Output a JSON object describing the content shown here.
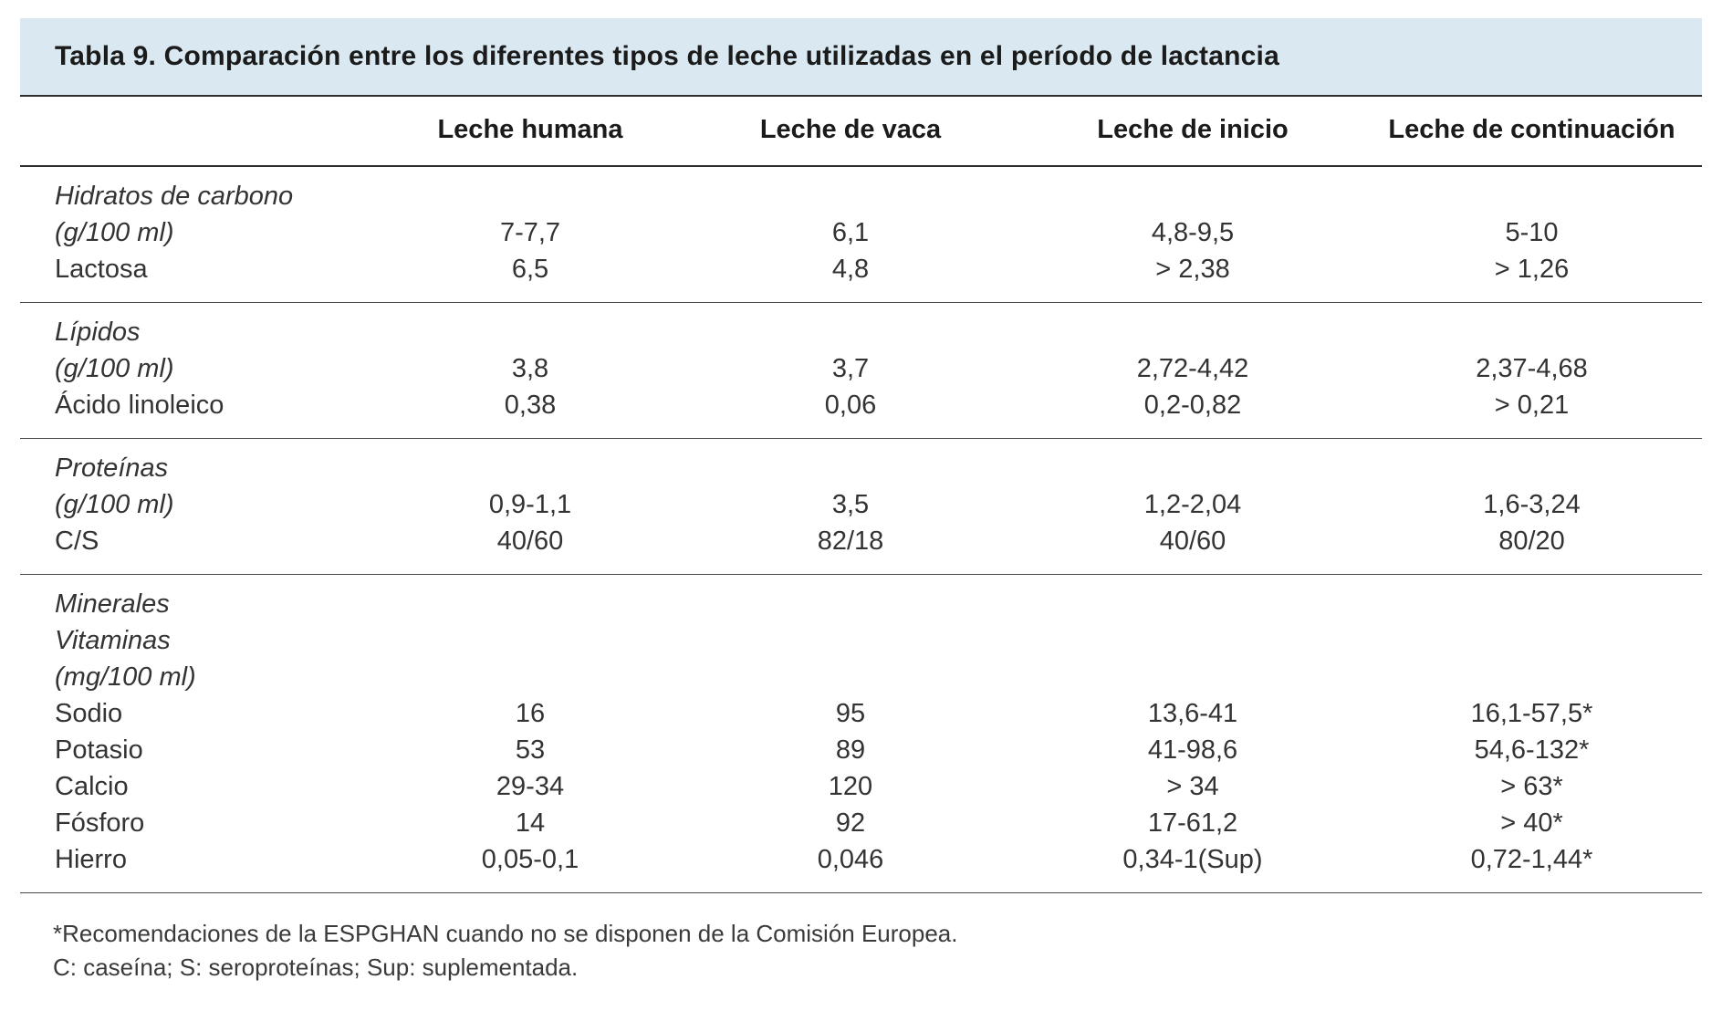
{
  "title": "Tabla 9. Comparación entre los diferentes tipos de leche utilizadas en el período de lactancia",
  "columns": [
    "Leche humana",
    "Leche de vaca",
    "Leche de inicio",
    "Leche de continuación"
  ],
  "sections": [
    {
      "name": "hidratos-de-carbono",
      "rows": [
        {
          "label": "Hidratos de carbono",
          "italic": true,
          "values": [
            "",
            "",
            "",
            ""
          ]
        },
        {
          "label": "(g/100 ml)",
          "italic": true,
          "values": [
            "7-7,7",
            "6,1",
            "4,8-9,5",
            "5-10"
          ]
        },
        {
          "label": "Lactosa",
          "italic": false,
          "values": [
            "6,5",
            "4,8",
            "> 2,38",
            "> 1,26"
          ]
        }
      ]
    },
    {
      "name": "lipidos",
      "rows": [
        {
          "label": "Lípidos",
          "italic": true,
          "values": [
            "",
            "",
            "",
            ""
          ]
        },
        {
          "label": "(g/100 ml)",
          "italic": true,
          "values": [
            "3,8",
            "3,7",
            "2,72-4,42",
            "2,37-4,68"
          ]
        },
        {
          "label": "Ácido linoleico",
          "italic": false,
          "values": [
            "0,38",
            "0,06",
            "0,2-0,82",
            "> 0,21"
          ]
        }
      ]
    },
    {
      "name": "proteinas",
      "rows": [
        {
          "label": "Proteínas",
          "italic": true,
          "values": [
            "",
            "",
            "",
            ""
          ]
        },
        {
          "label": "(g/100 ml)",
          "italic": true,
          "values": [
            "0,9-1,1",
            "3,5",
            "1,2-2,04",
            "1,6-3,24"
          ]
        },
        {
          "label": "C/S",
          "italic": false,
          "values": [
            "40/60",
            "82/18",
            "40/60",
            "80/20"
          ]
        }
      ]
    },
    {
      "name": "minerales-vitaminas",
      "rows": [
        {
          "label": "Minerales",
          "italic": true,
          "values": [
            "",
            "",
            "",
            ""
          ]
        },
        {
          "label": "Vitaminas",
          "italic": true,
          "values": [
            "",
            "",
            "",
            ""
          ]
        },
        {
          "label": "(mg/100 ml)",
          "italic": true,
          "values": [
            "",
            "",
            "",
            ""
          ]
        },
        {
          "label": "Sodio",
          "italic": false,
          "values": [
            "16",
            "95",
            "13,6-41",
            "16,1-57,5*"
          ]
        },
        {
          "label": "Potasio",
          "italic": false,
          "values": [
            "53",
            "89",
            "41-98,6",
            "54,6-132*"
          ]
        },
        {
          "label": "Calcio",
          "italic": false,
          "values": [
            "29-34",
            "120",
            "> 34",
            "> 63*"
          ]
        },
        {
          "label": "Fósforo",
          "italic": false,
          "values": [
            "14",
            "92",
            "17-61,2",
            "> 40*"
          ]
        },
        {
          "label": "Hierro",
          "italic": false,
          "values": [
            "0,05-0,1",
            "0,046",
            "0,34-1(Sup)",
            "0,72-1,44*"
          ]
        }
      ]
    }
  ],
  "footnotes": [
    "*Recomendaciones de la ESPGHAN cuando no se disponen de la Comisión Europea.",
    "C: caseína; S: seroproteínas; Sup: suplementada."
  ],
  "colors": {
    "title_band": "#d9e8f1",
    "text": "#333333",
    "rule_strong": "#2d2d2d",
    "rule_light": "#474747"
  }
}
